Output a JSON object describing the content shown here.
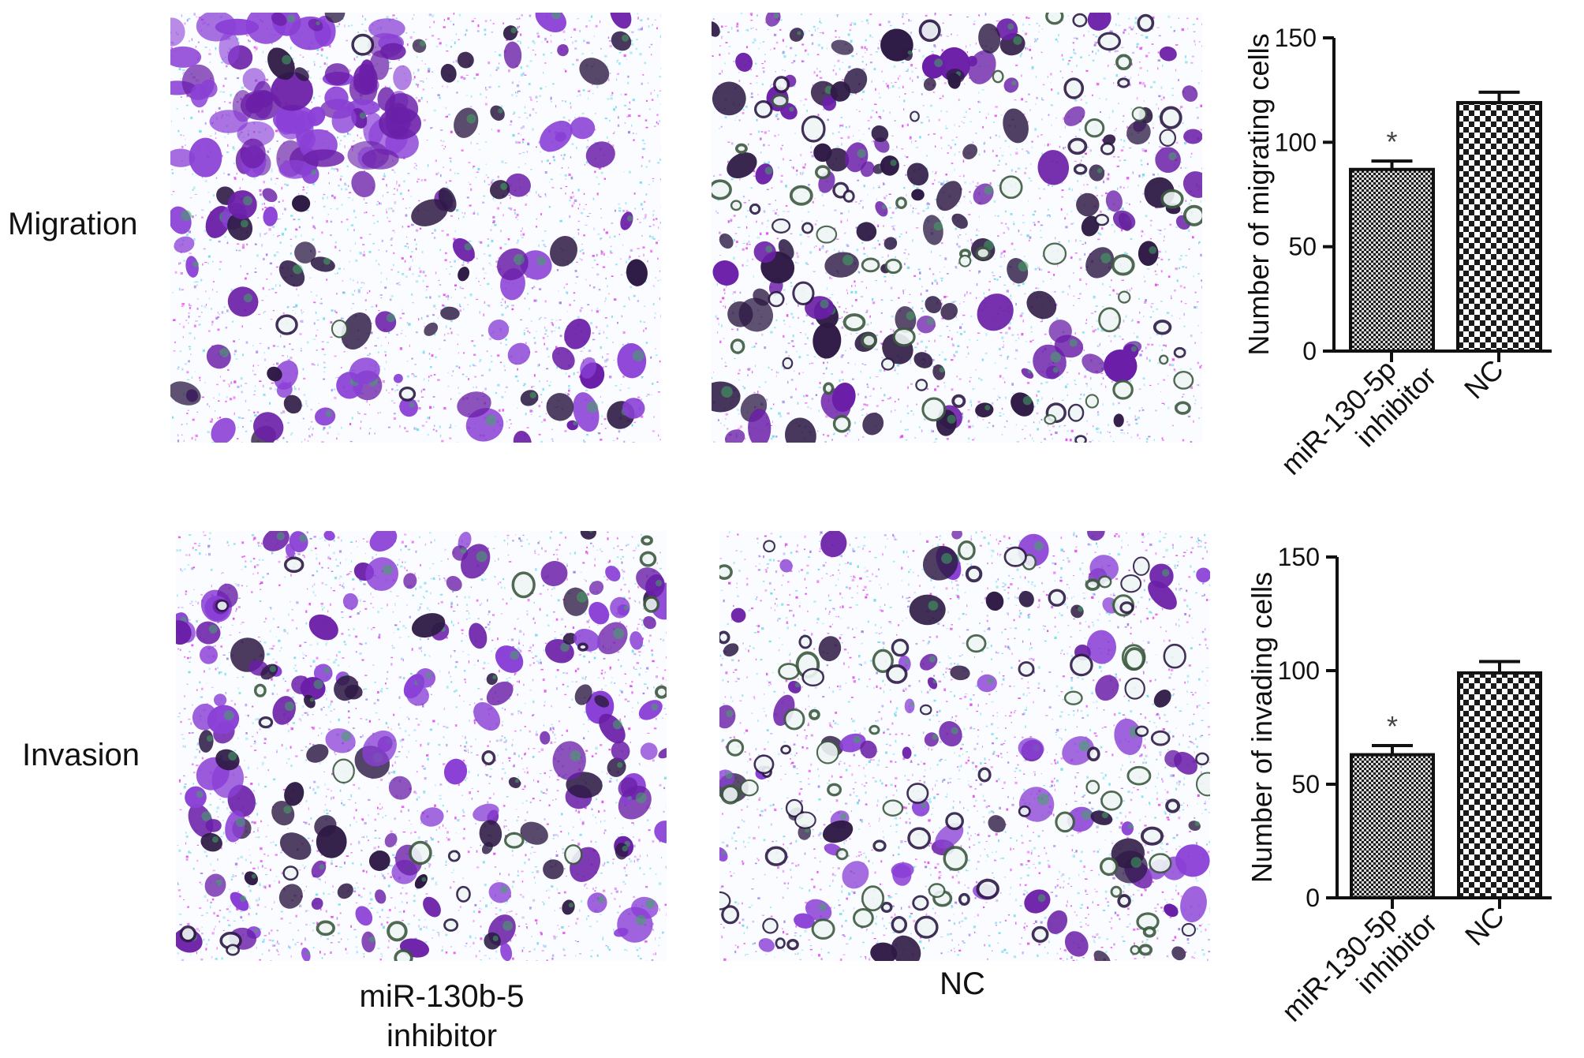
{
  "rows": [
    {
      "label": "Migration"
    },
    {
      "label": "Invasion"
    }
  ],
  "columns": [
    {
      "label_lines": [
        "miR-130b-5",
        "inhibitor"
      ]
    },
    {
      "label_lines": [
        "NC"
      ]
    }
  ],
  "colors": {
    "stain_purple": "#6b1fa8",
    "stain_dark": "#2e1a45",
    "stain_violet": "#8a3fd6",
    "speck_magenta": "#e040e8",
    "speck_cyan": "#6fd8e8",
    "speck_green": "#3fa860",
    "bar_fill": "#1a1a1a"
  },
  "chart_data": [
    {
      "type": "bar",
      "ylabel": "Number of migrating cells",
      "ylim": [
        0,
        150
      ],
      "yticks": [
        0,
        50,
        100,
        150
      ],
      "categories": [
        {
          "lines": [
            "miR-130-5p",
            "inhibitor"
          ]
        },
        {
          "lines": [
            "NC"
          ]
        }
      ],
      "values": [
        87,
        119
      ],
      "errors": [
        4,
        5
      ],
      "patterns": [
        "fine-check",
        "coarse-check"
      ],
      "annotations": [
        "*",
        ""
      ]
    },
    {
      "type": "bar",
      "ylabel": "Number of invading cells",
      "ylim": [
        0,
        150
      ],
      "yticks": [
        0,
        50,
        100,
        150
      ],
      "categories": [
        {
          "lines": [
            "miR-130-5p",
            "inhibitor"
          ]
        },
        {
          "lines": [
            "NC"
          ]
        }
      ],
      "values": [
        63,
        99
      ],
      "errors": [
        4,
        5
      ],
      "patterns": [
        "fine-check",
        "coarse-check"
      ],
      "annotations": [
        "*",
        ""
      ]
    }
  ]
}
